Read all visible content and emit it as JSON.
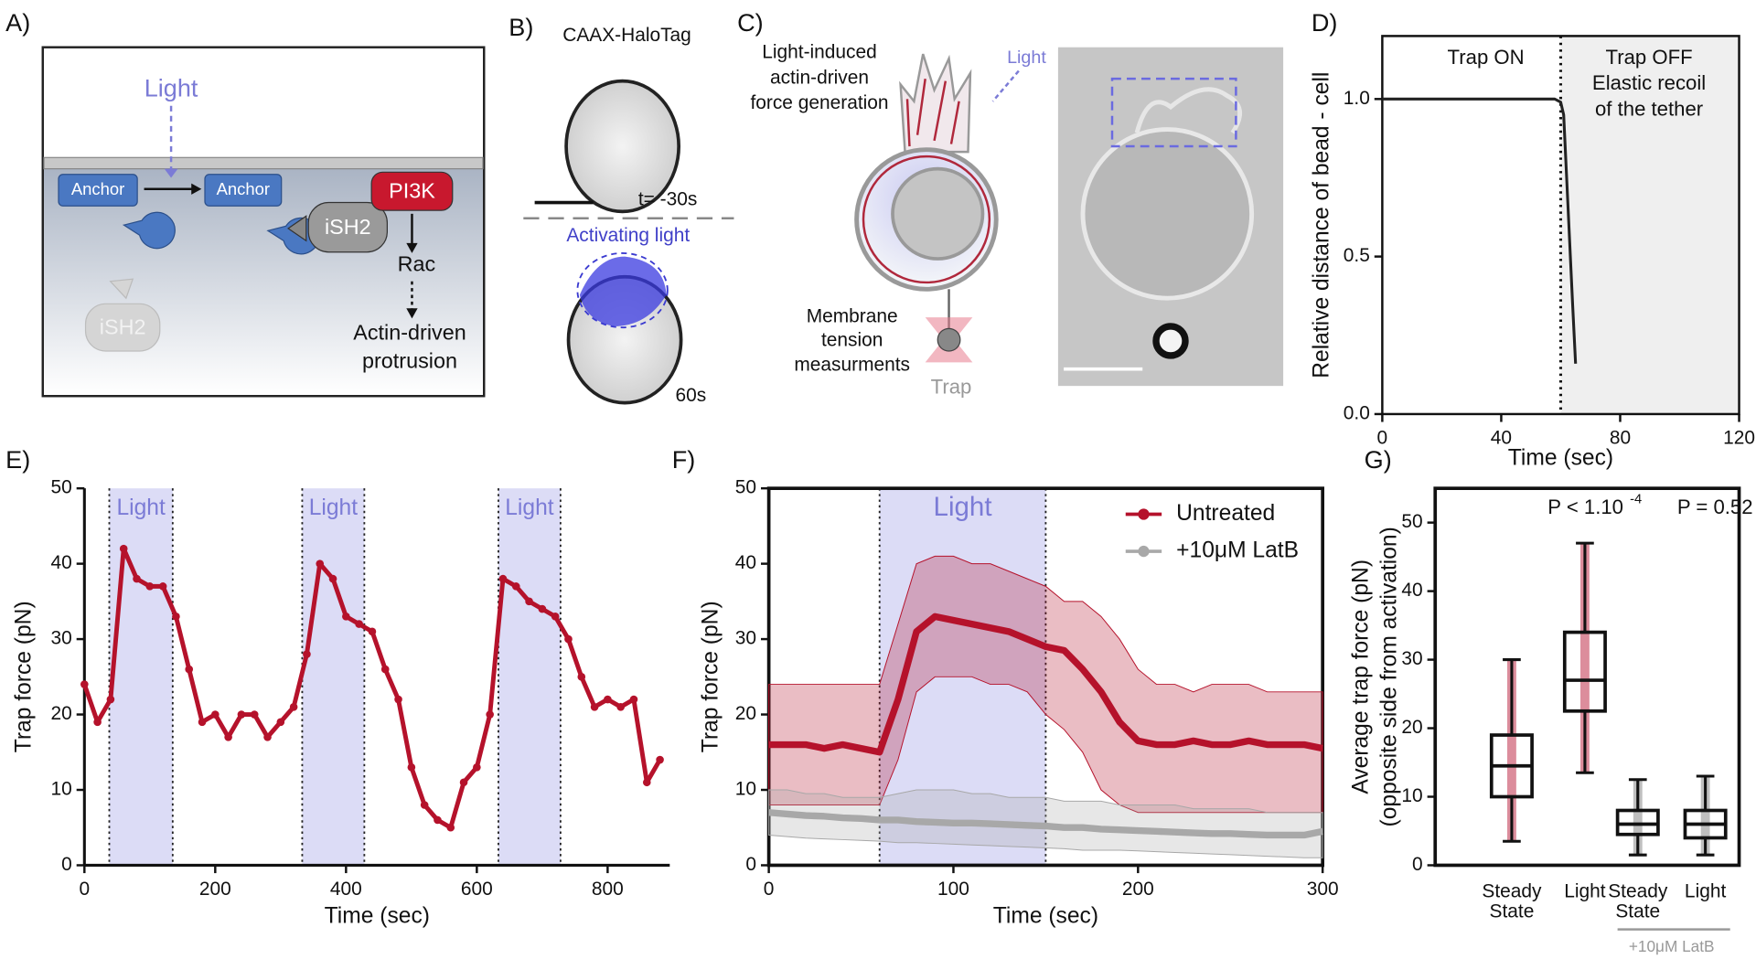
{
  "panel_a": {
    "label": "A)",
    "light": "Light",
    "anchor_1": "Anchor",
    "anchor_2": "Anchor",
    "ish2": "iSH2",
    "pi3k": "PI3K",
    "rac": "Rac",
    "outcome": [
      "Actin-driven",
      "protrusion"
    ],
    "ish2_free": "iSH2"
  },
  "panel_b": {
    "label": "B)",
    "title": "CAAX-HaloTag",
    "time_before": "t= -30s",
    "activating": "Activating light",
    "time_after": "60s"
  },
  "panel_c": {
    "label": "C)",
    "force": [
      "Light-induced",
      "actin-driven",
      "force generation"
    ],
    "light": "Light",
    "tension": [
      "Membrane",
      "tension",
      "measurments"
    ],
    "trap": "Trap"
  },
  "chart_data": [
    {
      "type": "line",
      "label": "D)",
      "ylabel": "Relative distance of  bead - cell",
      "xlabel": "Time (sec)",
      "xlim": [
        0,
        120
      ],
      "ylim": [
        0,
        1.2
      ],
      "xticks": [
        0,
        40,
        80,
        120
      ],
      "yticks": [
        {
          "value": 0,
          "label": "0.0"
        },
        {
          "value": 0.5,
          "label": "0.5"
        },
        {
          "value": 1,
          "label": "1.0"
        }
      ],
      "annotations": [
        "Trap ON",
        "Trap OFF",
        "Elastic recoil",
        "of the tether"
      ],
      "shaded_x": [
        60,
        120
      ],
      "event_x": 60,
      "x": [
        0,
        10,
        20,
        30,
        40,
        50,
        58,
        60,
        61,
        62,
        63,
        64,
        65
      ],
      "values": [
        1,
        1,
        1,
        1,
        1,
        1,
        1,
        0.99,
        0.95,
        0.75,
        0.55,
        0.35,
        0.16
      ],
      "color": "#222222"
    },
    {
      "type": "scatter",
      "label": "E)",
      "ylabel": "Trap force (pN)",
      "xlabel": "Time (sec)",
      "xlim": [
        0,
        895
      ],
      "ylim": [
        0,
        50
      ],
      "xticks": [
        0,
        200,
        400,
        600,
        800
      ],
      "yticks": [
        0,
        10,
        20,
        30,
        40,
        50
      ],
      "bands": [
        {
          "range": [
            38,
            135
          ],
          "label": "Light"
        },
        {
          "range": [
            333,
            428
          ],
          "label": "Light"
        },
        {
          "range": [
            633,
            728
          ],
          "label": "Light"
        }
      ],
      "x": [
        0,
        20,
        40,
        60,
        80,
        100,
        120,
        140,
        160,
        180,
        200,
        220,
        240,
        260,
        280,
        300,
        320,
        340,
        360,
        380,
        400,
        420,
        440,
        460,
        480,
        500,
        520,
        540,
        560,
        580,
        600,
        620,
        640,
        660,
        680,
        700,
        720,
        740,
        760,
        780,
        800,
        820,
        840,
        860,
        880
      ],
      "values": [
        24,
        19,
        22,
        42,
        38,
        37,
        37,
        33,
        26,
        19,
        20,
        17,
        20,
        20,
        17,
        19,
        21,
        28,
        40,
        38,
        33,
        32,
        31,
        26,
        22,
        13,
        8,
        6,
        5,
        11,
        13,
        20,
        38,
        37,
        35,
        34,
        33,
        30,
        25,
        21,
        22,
        21,
        22,
        11,
        14
      ],
      "color": "#b5122b"
    },
    {
      "type": "line",
      "label": "F)",
      "ylabel": "Trap force (pN)",
      "xlabel": "Time (sec)",
      "xlim": [
        0,
        300
      ],
      "ylim": [
        0,
        50
      ],
      "xticks": [
        0,
        100,
        200,
        300
      ],
      "yticks": [
        0,
        10,
        20,
        30,
        40,
        50
      ],
      "bands": [
        {
          "range": [
            60,
            150
          ],
          "label": "Light"
        }
      ],
      "legend": "upper right",
      "x": [
        0,
        10,
        20,
        30,
        40,
        50,
        60,
        70,
        80,
        90,
        100,
        110,
        120,
        130,
        140,
        150,
        160,
        170,
        180,
        190,
        200,
        210,
        220,
        230,
        240,
        250,
        260,
        270,
        280,
        290,
        300
      ],
      "series": [
        {
          "name": "Untreated",
          "color": "#b5122b",
          "values": [
            16,
            16,
            16,
            15.5,
            16,
            15.5,
            15,
            22,
            31,
            33,
            32.5,
            32,
            31.5,
            31,
            30,
            29,
            28.5,
            26,
            23,
            19,
            16.5,
            16,
            16,
            16.5,
            16,
            16,
            16.5,
            16,
            16,
            16,
            15.5
          ],
          "lower": [
            8,
            8,
            8,
            8,
            8,
            8,
            8,
            14,
            23,
            25,
            25,
            25,
            24,
            24,
            23,
            20,
            18,
            15,
            10,
            8,
            7,
            7,
            7,
            7,
            7,
            7,
            7,
            7,
            7,
            7,
            7
          ],
          "upper": [
            24,
            24,
            24,
            24,
            24,
            24,
            24,
            32,
            40,
            41,
            41,
            40,
            40,
            39,
            38,
            37,
            35,
            35,
            33,
            30,
            26,
            24,
            24,
            23,
            24,
            24,
            24,
            23,
            23,
            23,
            23
          ]
        },
        {
          "name": "+10μM LatB",
          "color": "#a8a8a8",
          "values": [
            7,
            6.8,
            6.6,
            6.5,
            6.3,
            6.2,
            6,
            6,
            5.8,
            5.7,
            5.6,
            5.6,
            5.5,
            5.4,
            5.3,
            5.2,
            5,
            5,
            4.8,
            4.7,
            4.6,
            4.5,
            4.4,
            4.3,
            4.2,
            4.2,
            4.1,
            4,
            4,
            4,
            4.5
          ],
          "lower": [
            4,
            3.8,
            3.6,
            3.5,
            3.4,
            3.3,
            3.2,
            3,
            3,
            2.9,
            2.8,
            2.7,
            2.6,
            2.5,
            2.4,
            2.3,
            2.2,
            2,
            2,
            2,
            1.9,
            1.8,
            1.7,
            1.6,
            1.5,
            1.4,
            1.3,
            1.2,
            1.1,
            1,
            1
          ],
          "upper": [
            10,
            10,
            9.5,
            9.5,
            9,
            9,
            9,
            9.5,
            10,
            10,
            10,
            9.5,
            9.5,
            9,
            9,
            9,
            8.5,
            8.5,
            8.5,
            8,
            8,
            8,
            8,
            7.5,
            7.5,
            7.5,
            7.5,
            7,
            7,
            7,
            7
          ]
        }
      ]
    },
    {
      "type": "box",
      "label": "G)",
      "ylabel": [
        "Average trap force (pN)",
        "(opposite side from activation)"
      ],
      "ylim": [
        0,
        55
      ],
      "yticks": [
        0,
        10,
        20,
        30,
        40,
        50
      ],
      "categories": [
        [
          "Steady",
          "State"
        ],
        [
          "Light"
        ],
        [
          "Steady",
          "State"
        ],
        [
          "Light"
        ]
      ],
      "boxes": [
        {
          "min": 3.5,
          "q1": 10,
          "median": 14.5,
          "q3": 19,
          "max": 30,
          "color": "#c0304a"
        },
        {
          "min": 13.5,
          "q1": 22.5,
          "median": 27,
          "q3": 34,
          "max": 47,
          "color": "#c0304a"
        },
        {
          "min": 1.5,
          "q1": 4.5,
          "median": 6,
          "q3": 8,
          "max": 12.5,
          "color": "#8a8a8a"
        },
        {
          "min": 1.5,
          "q1": 4,
          "median": 6,
          "q3": 8,
          "max": 13,
          "color": "#8a8a8a"
        }
      ],
      "annotations": [
        "P < 1.10",
        "-4",
        "P = 0.52"
      ],
      "group_label": "+10μM LatB"
    }
  ]
}
